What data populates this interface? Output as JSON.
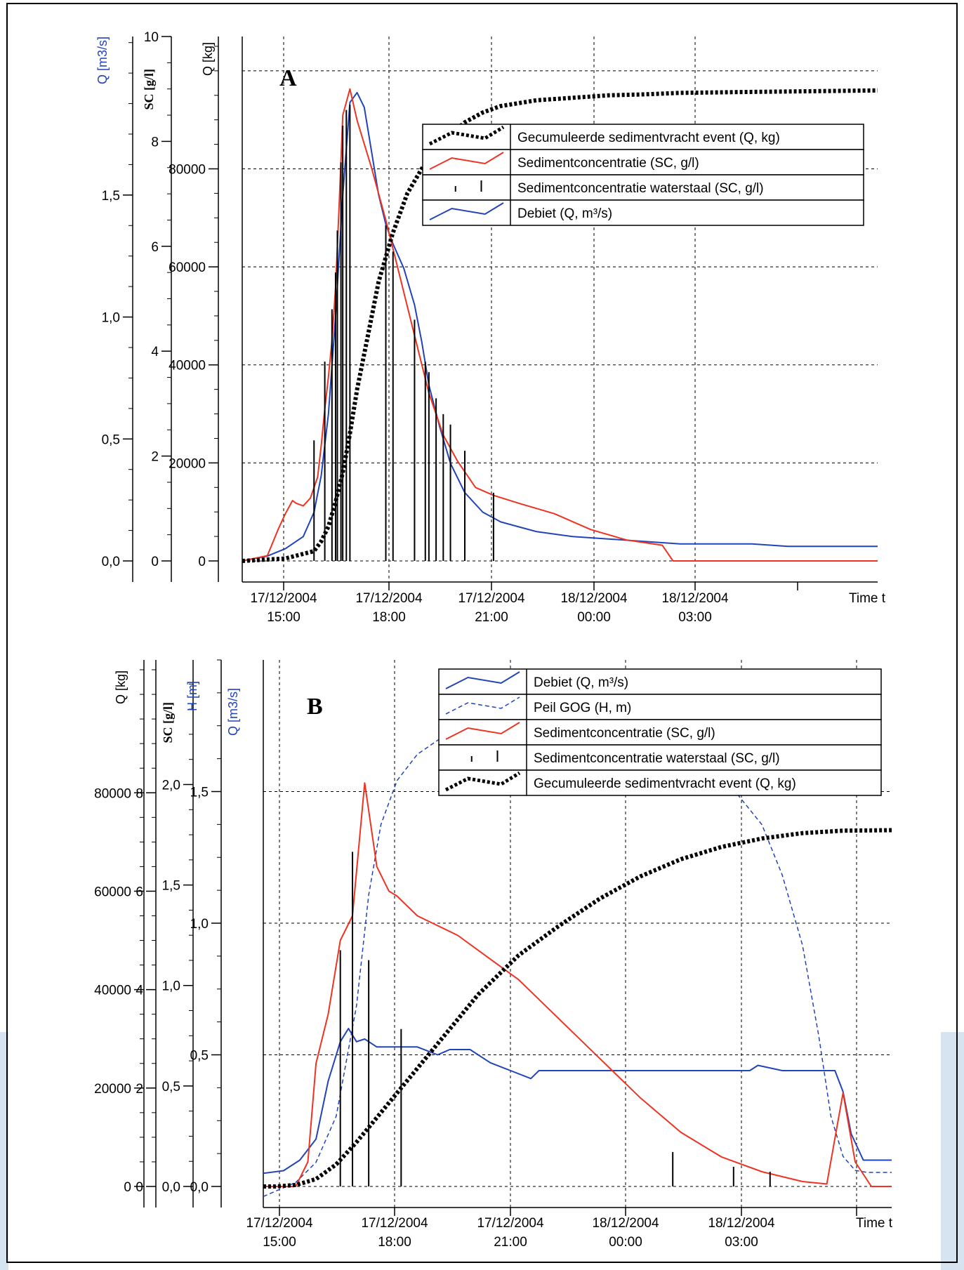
{
  "colors": {
    "black": "#000000",
    "red": "#ee3322",
    "blue": "#2244bb",
    "frame_edge": "#d6e4f2"
  },
  "panels": [
    {
      "letter": "A",
      "axes": [
        {
          "label": "Q [m3/s]",
          "color": "#2244bb",
          "range": [
            0,
            2.15
          ],
          "ticks": [
            {
              "v": 0,
              "t": "0,0"
            },
            {
              "v": 0.5,
              "t": "0,5"
            },
            {
              "v": 1,
              "t": "1,0"
            },
            {
              "v": 1.5,
              "t": "1,5"
            }
          ]
        },
        {
          "label": "SC [g/l]",
          "color": "#000000",
          "range": [
            0,
            10
          ],
          "ticks": [
            {
              "v": 0,
              "t": "0"
            },
            {
              "v": 2,
              "t": "2"
            },
            {
              "v": 4,
              "t": "4"
            },
            {
              "v": 6,
              "t": "6"
            },
            {
              "v": 8,
              "t": "8"
            },
            {
              "v": 10,
              "t": "10"
            }
          ]
        },
        {
          "label": "Q [kg]",
          "color": "#000000",
          "range": [
            0,
            107000
          ],
          "ticks": [
            {
              "v": 0,
              "t": "0"
            },
            {
              "v": 20000,
              "t": "20000"
            },
            {
              "v": 40000,
              "t": "40000"
            },
            {
              "v": 60000,
              "t": "60000"
            },
            {
              "v": 80000,
              "t": "80000"
            }
          ]
        }
      ],
      "x_ticks": [
        {
          "d": "17/12/2004",
          "h": "15:00"
        },
        {
          "d": "17/12/2004",
          "h": "18:00"
        },
        {
          "d": "17/12/2004",
          "h": "21:00"
        },
        {
          "d": "18/12/2004",
          "h": "00:00"
        },
        {
          "d": "18/12/2004",
          "h": "03:00"
        }
      ],
      "x_title": "Time t",
      "legend": [
        {
          "text": "Gecumuleerde sedimentvracht event (Q, kg)",
          "style": "dots"
        },
        {
          "text": "Sedimentconcentratie (SC, g/l)",
          "style": "red"
        },
        {
          "text": "Sedimentconcentratie waterstaal (SC, g/l)",
          "style": "bars"
        },
        {
          "text": "Debiet (Q, m³/s)",
          "style": "blue"
        }
      ]
    },
    {
      "letter": "B",
      "axes": [
        {
          "label": "Q [kg]",
          "color": "#000000",
          "range": [
            0,
            107000
          ],
          "ticks": [
            {
              "v": 0,
              "t": "0"
            },
            {
              "v": 20000,
              "t": "20000"
            },
            {
              "v": 40000,
              "t": "40000"
            },
            {
              "v": 60000,
              "t": "60000"
            },
            {
              "v": 80000,
              "t": "80000"
            }
          ]
        },
        {
          "label": "SC [g/l]",
          "color": "#000000",
          "range": [
            0,
            10.7
          ],
          "ticks": [
            {
              "v": 0,
              "t": "0"
            },
            {
              "v": 2,
              "t": "2"
            },
            {
              "v": 4,
              "t": "4"
            },
            {
              "v": 6,
              "t": "6"
            },
            {
              "v": 8,
              "t": "8"
            }
          ]
        },
        {
          "label": "H [m]",
          "color": "#2244bb",
          "range": [
            0,
            2.62
          ],
          "ticks": [
            {
              "v": 0,
              "t": "0,0"
            },
            {
              "v": 0.5,
              "t": "0,5"
            },
            {
              "v": 1,
              "t": "1,0"
            },
            {
              "v": 1.5,
              "t": "1,5"
            },
            {
              "v": 2,
              "t": "2,0"
            }
          ]
        },
        {
          "label": "Q [m3/s]",
          "color": "#2244bb",
          "range": [
            0,
            2.0
          ],
          "ticks": [
            {
              "v": 0,
              "t": "0,0"
            },
            {
              "v": 0.5,
              "t": "0,5"
            },
            {
              "v": 1,
              "t": "1,0"
            },
            {
              "v": 1.5,
              "t": "1,5"
            }
          ]
        }
      ],
      "x_ticks": [
        {
          "d": "17/12/2004",
          "h": "15:00"
        },
        {
          "d": "17/12/2004",
          "h": "18:00"
        },
        {
          "d": "17/12/2004",
          "h": "21:00"
        },
        {
          "d": "18/12/2004",
          "h": "00:00"
        },
        {
          "d": "18/12/2004",
          "h": "03:00"
        }
      ],
      "x_title": "Time t",
      "legend": [
        {
          "text": "Debiet (Q, m³/s)",
          "style": "blue"
        },
        {
          "text": "Peil GOG (H, m)",
          "style": "bluedash"
        },
        {
          "text": "Sedimentconcentratie (SC, g/l)",
          "style": "red"
        },
        {
          "text": "Sedimentconcentratie waterstaal (SC, g/l)",
          "style": "bars"
        },
        {
          "text": "Gecumuleerde sedimentvracht event (Q, kg)",
          "style": "dots"
        }
      ]
    }
  ],
  "chart_data": [
    {
      "type": "line",
      "title": "A",
      "xlabel": "Time t",
      "x_unit": "hours since 17/12/2004 00:00",
      "xlim": [
        13.8,
        31.5
      ],
      "series": [
        {
          "name": "Debiet (Q, m³/s)",
          "axis": "Q [m3/s]",
          "x": [
            13.8,
            14.5,
            15.0,
            15.5,
            15.8,
            16.0,
            16.2,
            16.4,
            16.6,
            16.8,
            17.0,
            17.2,
            17.4,
            17.6,
            17.8,
            18.0,
            18.3,
            18.6,
            18.8,
            19.0,
            19.3,
            19.6,
            20.0,
            20.5,
            21.0,
            21.5,
            22.0,
            23.0,
            24.0,
            25.0,
            26.0,
            27.0,
            28.0,
            29.0,
            30.0,
            31.5
          ],
          "y": [
            0.0,
            0.02,
            0.05,
            0.1,
            0.2,
            0.35,
            0.6,
            1.0,
            1.5,
            1.88,
            1.92,
            1.86,
            1.68,
            1.5,
            1.38,
            1.3,
            1.2,
            1.05,
            0.9,
            0.72,
            0.55,
            0.4,
            0.28,
            0.2,
            0.16,
            0.14,
            0.12,
            0.1,
            0.09,
            0.08,
            0.07,
            0.07,
            0.07,
            0.06,
            0.06,
            0.06
          ]
        },
        {
          "name": "Sedimentconcentratie (SC, g/l)",
          "axis": "SC [g/l]",
          "x": [
            13.8,
            14.5,
            14.8,
            15.0,
            15.2,
            15.3,
            15.5,
            15.7,
            15.9,
            16.0,
            16.1,
            16.2,
            16.3,
            16.4,
            16.5,
            16.6,
            16.8,
            17.0,
            17.4,
            17.8,
            18.2,
            18.6,
            19.0,
            19.4,
            19.8,
            20.3,
            20.8,
            21.5,
            22.5,
            23.5,
            24.5,
            25.5,
            25.8,
            31.5
          ],
          "y": [
            0.0,
            0.1,
            0.6,
            0.9,
            1.15,
            1.1,
            1.05,
            1.2,
            1.6,
            2.2,
            2.9,
            3.5,
            4.2,
            5.2,
            6.8,
            8.5,
            9.0,
            8.4,
            7.5,
            6.5,
            5.4,
            4.3,
            3.2,
            2.4,
            1.9,
            1.4,
            1.25,
            1.1,
            0.9,
            0.6,
            0.4,
            0.3,
            0.0,
            0.0
          ]
        },
        {
          "name": "Gecumuleerde sedimentvracht event (Q, kg)",
          "axis": "Q [kg]",
          "x": [
            13.8,
            15.0,
            15.8,
            16.0,
            16.2,
            16.4,
            16.6,
            16.8,
            17.0,
            17.3,
            17.6,
            18.0,
            18.4,
            18.8,
            19.2,
            19.6,
            20.0,
            20.5,
            21.0,
            22.0,
            23.0,
            24.0,
            25.0,
            26.0,
            28.0,
            31.5
          ],
          "y": [
            0,
            500,
            2000,
            4000,
            7000,
            12000,
            18000,
            26000,
            35000,
            46000,
            57000,
            67000,
            75000,
            80000,
            84000,
            87000,
            89500,
            91500,
            92800,
            94000,
            94500,
            95000,
            95200,
            95500,
            95700,
            96000
          ]
        },
        {
          "name": "Sedimentconcentratie waterstaal (SC, g/l)",
          "axis": "SC [g/l]",
          "x": [
            15.8,
            16.1,
            16.3,
            16.4,
            16.45,
            16.55,
            16.6,
            16.7,
            16.8,
            17.8,
            18.0,
            18.6,
            18.9,
            19.0,
            19.2,
            19.4,
            19.6,
            20.0,
            20.8
          ],
          "y": [
            2.3,
            3.8,
            4.8,
            5.5,
            6.3,
            7.6,
            8.3,
            8.6,
            8.7,
            6.4,
            5.9,
            4.6,
            3.8,
            3.6,
            3.1,
            2.8,
            2.6,
            2.1,
            1.3
          ]
        }
      ]
    },
    {
      "type": "line",
      "title": "B",
      "xlabel": "Time t",
      "x_unit": "hours since 17/12/2004 00:00",
      "xlim": [
        14.7,
        30.2
      ],
      "series": [
        {
          "name": "Debiet (Q, m³/s)",
          "axis": "Q [m3/s]",
          "x": [
            14.7,
            15.2,
            15.6,
            16.0,
            16.3,
            16.6,
            16.8,
            17.0,
            17.2,
            17.5,
            18.0,
            18.5,
            19.0,
            19.3,
            19.8,
            20.3,
            20.8,
            21.3,
            21.5,
            22.0,
            23.0,
            24.0,
            25.0,
            26.0,
            26.7,
            26.9,
            27.5,
            28.5,
            28.8,
            29.0,
            29.2,
            29.5,
            30.2
          ],
          "y": [
            0.05,
            0.06,
            0.1,
            0.18,
            0.4,
            0.55,
            0.6,
            0.55,
            0.56,
            0.53,
            0.53,
            0.53,
            0.5,
            0.52,
            0.52,
            0.47,
            0.44,
            0.41,
            0.44,
            0.44,
            0.44,
            0.44,
            0.44,
            0.44,
            0.44,
            0.46,
            0.44,
            0.44,
            0.44,
            0.36,
            0.2,
            0.1,
            0.1
          ]
        },
        {
          "name": "Peil GOG (H, m)",
          "axis": "H [m]",
          "x": [
            14.7,
            15.5,
            16.0,
            16.5,
            17.0,
            17.3,
            17.6,
            18.0,
            18.5,
            19.0,
            19.5,
            20.0,
            21.0,
            22.0,
            23.0,
            24.0,
            25.0,
            26.0,
            27.0,
            27.5,
            28.0,
            28.4,
            28.7,
            29.0,
            29.3,
            29.6,
            30.2
          ],
          "y": [
            -0.05,
            0.02,
            0.12,
            0.35,
            0.9,
            1.45,
            1.8,
            2.02,
            2.15,
            2.22,
            2.28,
            2.3,
            2.3,
            2.3,
            2.25,
            2.2,
            2.15,
            2.05,
            1.8,
            1.55,
            1.2,
            0.75,
            0.35,
            0.15,
            0.08,
            0.07,
            0.07
          ]
        },
        {
          "name": "Sedimentconcentratie (SC, g/l)",
          "axis": "SC [g/l]",
          "x": [
            14.7,
            15.5,
            15.8,
            16.0,
            16.3,
            16.6,
            16.9,
            17.2,
            17.5,
            17.8,
            18.0,
            18.5,
            19.0,
            19.5,
            20.0,
            21.0,
            22.0,
            23.0,
            24.0,
            25.0,
            26.0,
            27.0,
            28.0,
            28.6,
            29.0,
            29.3,
            29.7,
            30.2
          ],
          "y": [
            0.0,
            0.0,
            0.5,
            2.5,
            3.5,
            5.0,
            5.5,
            8.2,
            6.5,
            6.0,
            5.9,
            5.5,
            5.3,
            5.1,
            4.8,
            4.2,
            3.4,
            2.6,
            1.8,
            1.1,
            0.6,
            0.3,
            0.1,
            0.05,
            1.9,
            0.5,
            0.0,
            0.0
          ]
        },
        {
          "name": "Gecumuleerde sedimentvracht event (Q, kg)",
          "axis": "Q [kg]",
          "x": [
            14.7,
            15.0,
            15.5,
            16.0,
            16.5,
            17.0,
            17.5,
            18.0,
            18.5,
            19.0,
            19.5,
            20.0,
            21.0,
            22.0,
            23.0,
            24.0,
            25.0,
            26.0,
            27.0,
            28.0,
            29.0,
            30.2
          ],
          "y": [
            0,
            0,
            300,
            1500,
            4500,
            9000,
            14000,
            19000,
            24000,
            29000,
            34000,
            39000,
            47000,
            53000,
            58500,
            63000,
            66500,
            69000,
            70700,
            71800,
            72300,
            72400
          ]
        },
        {
          "name": "Sedimentconcentratie waterstaal (SC, g/l)",
          "axis": "SC [g/l]",
          "x": [
            16.6,
            16.9,
            17.3,
            18.1,
            24.8,
            26.3,
            27.2
          ],
          "y": [
            4.8,
            6.8,
            4.6,
            3.2,
            0.7,
            0.4,
            0.3
          ]
        }
      ]
    }
  ]
}
